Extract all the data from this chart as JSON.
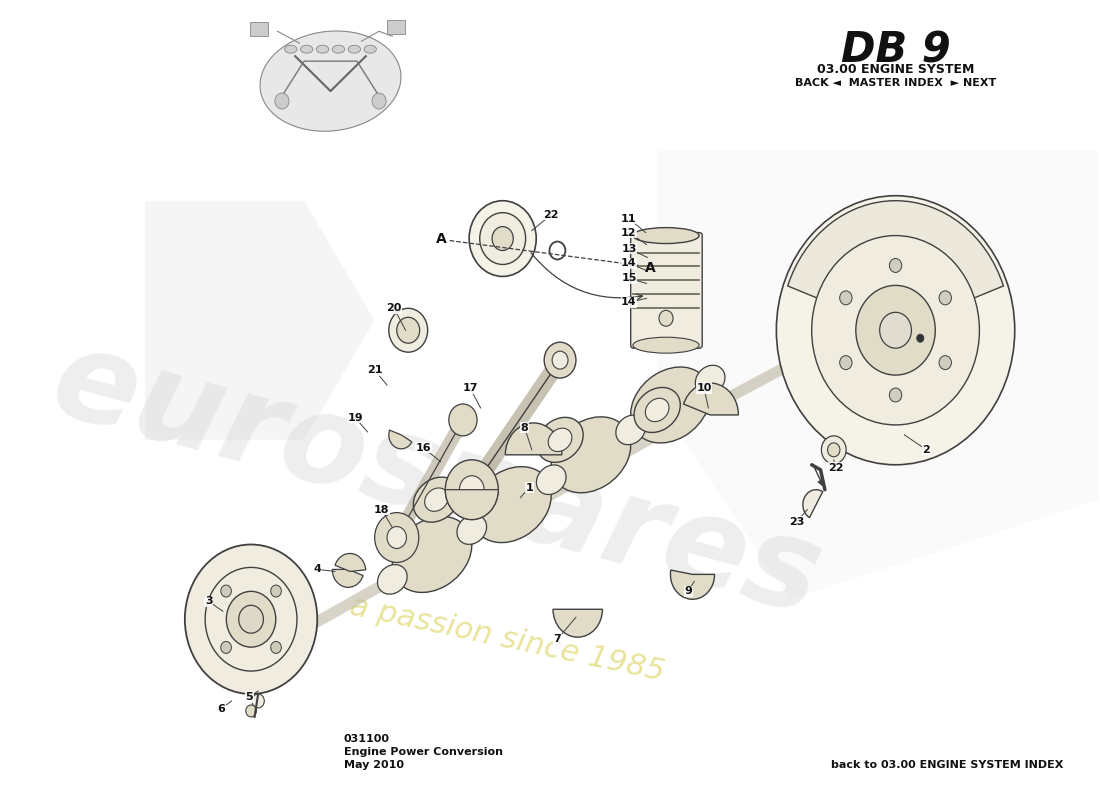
{
  "title_db9": "DB 9",
  "subtitle": "03.00 ENGINE SYSTEM",
  "nav_text": "BACK ◄  MASTER INDEX  ► NEXT",
  "bottom_left_code": "031100",
  "bottom_left_line1": "Engine Power Conversion",
  "bottom_left_line2": "May 2010",
  "bottom_right": "back to 03.00 ENGINE SYSTEM INDEX",
  "bg_color": "#ffffff",
  "line_color": "#404040",
  "fill_light": "#f0ede0",
  "fill_mid": "#e0dcc8",
  "fill_dark": "#c8c4b0"
}
